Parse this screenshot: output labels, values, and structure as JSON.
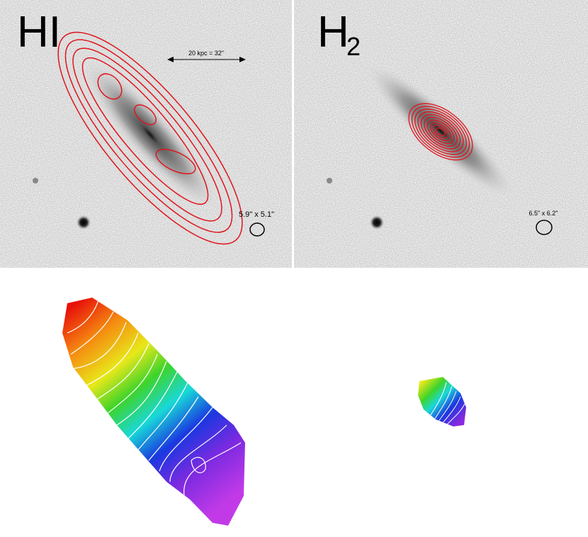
{
  "panels": [
    {
      "label": "HI",
      "scale_bar": "20 kpc = 32\"",
      "beam": "5.9\" x 5.1\""
    },
    {
      "label": "H",
      "label_subscript": "2",
      "beam": "6.5\" x 6.2\""
    }
  ]
}
